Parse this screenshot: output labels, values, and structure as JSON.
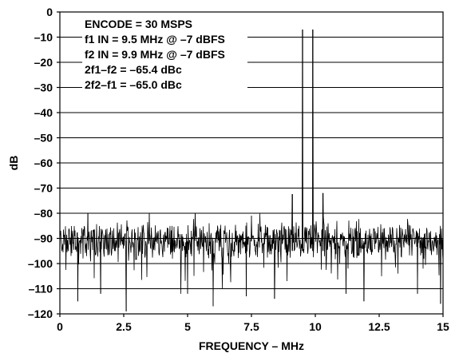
{
  "chart_data": {
    "type": "line",
    "title": "",
    "xlabel": "FREQUENCY – MHz",
    "ylabel": "dB",
    "xlim": [
      0,
      15
    ],
    "ylim": [
      -120,
      0
    ],
    "grid": "horizontal",
    "x_ticks": [
      0,
      2.5,
      5,
      7.5,
      10,
      12.5,
      15
    ],
    "x_tick_labels": [
      "0",
      "2.5",
      "5",
      "7.5",
      "10",
      "12.5",
      "15"
    ],
    "y_ticks": [
      0,
      -10,
      -20,
      -30,
      -40,
      -50,
      -60,
      -70,
      -80,
      -90,
      -100,
      -110,
      -120
    ],
    "y_tick_labels": [
      "0",
      "–10",
      "–20",
      "–30",
      "–40",
      "–50",
      "–60",
      "–70",
      "–80",
      "–90",
      "–100",
      "–110",
      "–120"
    ],
    "annotations": [
      "ENCODE = 30 MSPS",
      "f1 IN = 9.5 MHz @ –7 dBFS",
      "f2 IN = 9.9 MHz @ –7 dBFS",
      "2f1–f2 = –65.4 dBc",
      "2f2–f1 = –65.0 dBc"
    ],
    "series": [
      {
        "noise_floor_db": -91,
        "tones": [
          {
            "x": 9.5,
            "y": -7
          },
          {
            "x": 9.9,
            "y": -7
          },
          {
            "x": 9.1,
            "y": -72.4
          },
          {
            "x": 10.3,
            "y": -72.0
          }
        ],
        "notable_spurs": [
          {
            "x": 0.7,
            "y": -115
          },
          {
            "x": 1.1,
            "y": -80
          },
          {
            "x": 1.6,
            "y": -112
          },
          {
            "x": 2.6,
            "y": -119
          },
          {
            "x": 3.5,
            "y": -80
          },
          {
            "x": 5.0,
            "y": -112
          },
          {
            "x": 5.3,
            "y": -80
          },
          {
            "x": 6.0,
            "y": -117
          },
          {
            "x": 7.3,
            "y": -113
          },
          {
            "x": 7.5,
            "y": -81
          },
          {
            "x": 8.4,
            "y": -114
          },
          {
            "x": 11.2,
            "y": -112
          },
          {
            "x": 11.9,
            "y": -115
          },
          {
            "x": 14.0,
            "y": -112
          },
          {
            "x": 14.9,
            "y": -116
          }
        ]
      }
    ]
  }
}
